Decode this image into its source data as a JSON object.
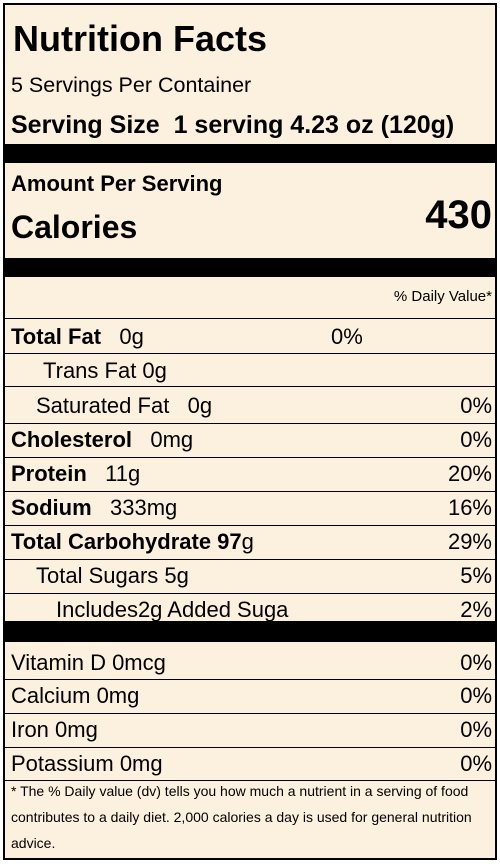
{
  "label": {
    "title": "Nutrition Facts",
    "servings_per_container": "5 Servings Per Container",
    "serving_size_label": "Serving Size",
    "serving_size_value": "1 serving 4.23 oz (120g)",
    "amount_per_serving": "Amount Per Serving",
    "calories_label": "Calories",
    "calories_value": "430",
    "daily_value_header": "% Daily Value*",
    "total_fat": {
      "name": "Total Fat",
      "amount": "0g",
      "dv": "0%"
    },
    "trans_fat": {
      "name": "Trans Fat 0g"
    },
    "saturated_fat": {
      "name": "Saturated Fat",
      "amount": "0g",
      "dv": "0%"
    },
    "cholesterol": {
      "name": "Cholesterol",
      "amount": "0mg",
      "dv": "0%"
    },
    "protein": {
      "name": "Protein",
      "amount": "11g",
      "dv": "20%"
    },
    "sodium": {
      "name": "Sodium",
      "amount": "333mg",
      "dv": "16%"
    },
    "total_carbohydrate": {
      "name": "Total Carbohydrate 97",
      "unit": "g",
      "dv": "29%"
    },
    "total_sugars": {
      "name": "Total Sugars 5g",
      "dv": "5%"
    },
    "added_sugars": {
      "name": "Includes2g Added Suga",
      "dv": "2%"
    },
    "vitamin_d": {
      "name": "Vitamin D 0mcg",
      "dv": "0%"
    },
    "calcium": {
      "name": "Calcium 0mg",
      "dv": "0%"
    },
    "iron": {
      "name": "Iron 0mg",
      "dv": "0%"
    },
    "potassium": {
      "name": "Potassium 0mg",
      "dv": "0%"
    },
    "footnote": "* The % Daily value (dv) tells you how much a nutrient in a serving of food contributes to a daily diet. 2,000 calories a day is used for general nutrition advice."
  }
}
